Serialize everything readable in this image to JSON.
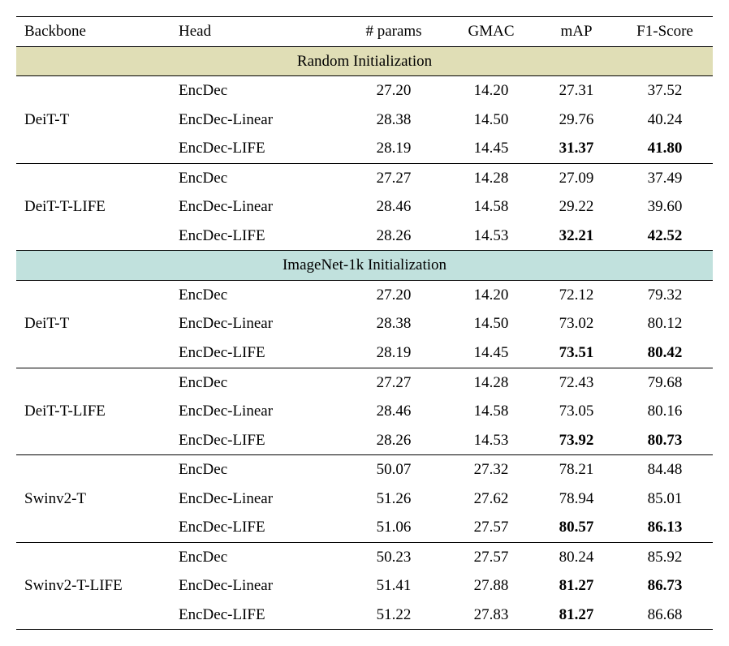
{
  "columns": [
    "Backbone",
    "Head",
    "# params",
    "GMAC",
    "mAP",
    "F1-Score"
  ],
  "sections": [
    {
      "title": "Random Initialization",
      "bg": "#e0deb6",
      "groups": [
        {
          "backbone": "DeiT-T",
          "rows": [
            {
              "head": "EncDec",
              "params": "27.20",
              "gmac": "14.20",
              "map": "27.31",
              "f1": "37.52",
              "bold_map": false,
              "bold_f1": false
            },
            {
              "head": "EncDec-Linear",
              "params": "28.38",
              "gmac": "14.50",
              "map": "29.76",
              "f1": "40.24",
              "bold_map": false,
              "bold_f1": false
            },
            {
              "head": "EncDec-LIFE",
              "params": "28.19",
              "gmac": "14.45",
              "map": "31.37",
              "f1": "41.80",
              "bold_map": true,
              "bold_f1": true
            }
          ]
        },
        {
          "backbone": "DeiT-T-LIFE",
          "rows": [
            {
              "head": "EncDec",
              "params": "27.27",
              "gmac": "14.28",
              "map": "27.09",
              "f1": "37.49",
              "bold_map": false,
              "bold_f1": false
            },
            {
              "head": "EncDec-Linear",
              "params": "28.46",
              "gmac": "14.58",
              "map": "29.22",
              "f1": "39.60",
              "bold_map": false,
              "bold_f1": false
            },
            {
              "head": "EncDec-LIFE",
              "params": "28.26",
              "gmac": "14.53",
              "map": "32.21",
              "f1": "42.52",
              "bold_map": true,
              "bold_f1": true
            }
          ]
        }
      ]
    },
    {
      "title": "ImageNet-1k Initialization",
      "bg": "#c1e1dd",
      "groups": [
        {
          "backbone": "DeiT-T",
          "rows": [
            {
              "head": "EncDec",
              "params": "27.20",
              "gmac": "14.20",
              "map": "72.12",
              "f1": "79.32",
              "bold_map": false,
              "bold_f1": false
            },
            {
              "head": "EncDec-Linear",
              "params": "28.38",
              "gmac": "14.50",
              "map": "73.02",
              "f1": "80.12",
              "bold_map": false,
              "bold_f1": false
            },
            {
              "head": "EncDec-LIFE",
              "params": "28.19",
              "gmac": "14.45",
              "map": "73.51",
              "f1": "80.42",
              "bold_map": true,
              "bold_f1": true
            }
          ]
        },
        {
          "backbone": "DeiT-T-LIFE",
          "rows": [
            {
              "head": "EncDec",
              "params": "27.27",
              "gmac": "14.28",
              "map": "72.43",
              "f1": "79.68",
              "bold_map": false,
              "bold_f1": false
            },
            {
              "head": "EncDec-Linear",
              "params": "28.46",
              "gmac": "14.58",
              "map": "73.05",
              "f1": "80.16",
              "bold_map": false,
              "bold_f1": false
            },
            {
              "head": "EncDec-LIFE",
              "params": "28.26",
              "gmac": "14.53",
              "map": "73.92",
              "f1": "80.73",
              "bold_map": true,
              "bold_f1": true
            }
          ]
        },
        {
          "backbone": "Swinv2-T",
          "rows": [
            {
              "head": "EncDec",
              "params": "50.07",
              "gmac": "27.32",
              "map": "78.21",
              "f1": "84.48",
              "bold_map": false,
              "bold_f1": false
            },
            {
              "head": "EncDec-Linear",
              "params": "51.26",
              "gmac": "27.62",
              "map": "78.94",
              "f1": "85.01",
              "bold_map": false,
              "bold_f1": false
            },
            {
              "head": "EncDec-LIFE",
              "params": "51.06",
              "gmac": "27.57",
              "map": "80.57",
              "f1": "86.13",
              "bold_map": true,
              "bold_f1": true
            }
          ]
        },
        {
          "backbone": "Swinv2-T-LIFE",
          "rows": [
            {
              "head": "EncDec",
              "params": "50.23",
              "gmac": "27.57",
              "map": "80.24",
              "f1": "85.92",
              "bold_map": false,
              "bold_f1": false
            },
            {
              "head": "EncDec-Linear",
              "params": "51.41",
              "gmac": "27.88",
              "map": "81.27",
              "f1": "86.73",
              "bold_map": true,
              "bold_f1": true
            },
            {
              "head": "EncDec-LIFE",
              "params": "51.22",
              "gmac": "27.83",
              "map": "81.27",
              "f1": "86.68",
              "bold_map": true,
              "bold_f1": false
            }
          ]
        }
      ]
    }
  ]
}
